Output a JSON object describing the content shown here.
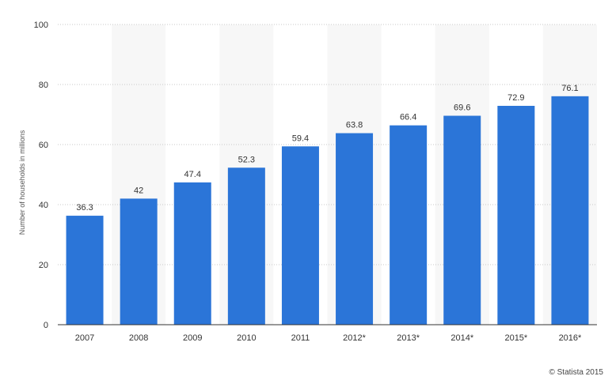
{
  "chart_data": {
    "type": "bar",
    "categories": [
      "2007",
      "2008",
      "2009",
      "2010",
      "2011",
      "2012*",
      "2013*",
      "2014*",
      "2015*",
      "2016*"
    ],
    "values": [
      36.3,
      42,
      47.4,
      52.3,
      59.4,
      63.8,
      66.4,
      69.6,
      72.9,
      76.1
    ],
    "data_labels": [
      "36.3",
      "42",
      "47.4",
      "52.3",
      "59.4",
      "63.8",
      "66.4",
      "69.6",
      "72.9",
      "76.1"
    ],
    "title": "",
    "xlabel": "",
    "ylabel": "Number of households in millions",
    "ylim": [
      0,
      100
    ],
    "yticks": [
      0,
      20,
      40,
      60,
      80,
      100
    ],
    "grid": "horizontal dotted",
    "legend": "none",
    "bar_color": "#2b75d8",
    "band_color": "#f7f7f7"
  },
  "credit": "© Statista 2015"
}
